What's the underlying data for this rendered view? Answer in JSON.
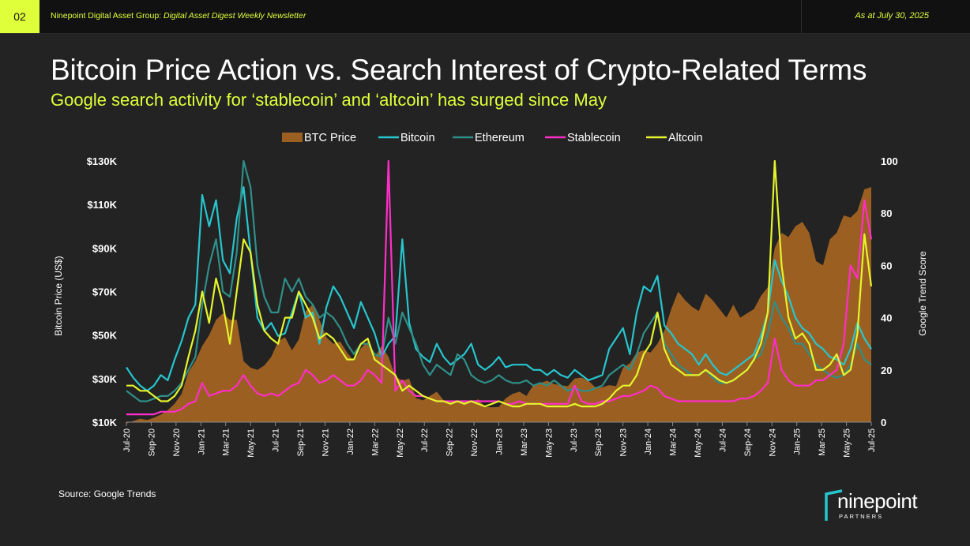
{
  "header": {
    "page_number": "02",
    "newsletter_prefix": "Ninepoint Digital Asset Group: ",
    "newsletter_name": "Digital Asset Digest Weekly Newsletter",
    "as_at": "As at July 30, 2025"
  },
  "title": "Bitcoin Price Action vs. Search Interest of Crypto-Related Terms",
  "subtitle": "Google search activity for ‘stablecoin’ and ‘altcoin’ has surged since May",
  "source": "Source: Google Trends",
  "logo": {
    "word": "ninepoint",
    "sub": "PARTNERS"
  },
  "colors": {
    "btc_price": "#9b5f22",
    "bitcoin": "#26c6cf",
    "ethereum": "#2f8f88",
    "stablecoin": "#ff2ec8",
    "altcoin": "#e5f52b",
    "accent": "#dfff3a",
    "background": "#232323"
  },
  "chart_data": {
    "type": "area",
    "legend_position": "top",
    "grid": false,
    "x_labels": [
      "Jul-20",
      "Sep-20",
      "Nov-20",
      "Jan-21",
      "Mar-21",
      "May-21",
      "Jul-21",
      "Sep-21",
      "Nov-21",
      "Jan-22",
      "Mar-22",
      "May-22",
      "Jul-22",
      "Sep-22",
      "Nov-22",
      "Jan-23",
      "Mar-23",
      "May-23",
      "Jul-23",
      "Sep-23",
      "Nov-23",
      "Jan-24",
      "Mar-24",
      "May-24",
      "Jul-24",
      "Sep-24",
      "Nov-24",
      "Jan-25",
      "Mar-25",
      "May-25",
      "Jul-25"
    ],
    "x_range": [
      "2020-07",
      "2025-07"
    ],
    "y_left": {
      "label": "Bitcoin Price (US$)",
      "ticks": [
        "$10K",
        "$30K",
        "$50K",
        "$70K",
        "$90K",
        "$110K",
        "$130K"
      ],
      "range": [
        10000,
        130000
      ]
    },
    "y_right": {
      "label": "Google Trend Score",
      "ticks": [
        "0",
        "20",
        "40",
        "60",
        "80",
        "100"
      ],
      "range": [
        0,
        100
      ]
    },
    "series": [
      {
        "name": "BTC Price",
        "type": "area",
        "axis": "left",
        "values": [
          9300,
          10500,
          11600,
          11000,
          12000,
          13500,
          15500,
          18500,
          23000,
          33000,
          38000,
          45000,
          50000,
          57000,
          60000,
          57000,
          57000,
          38000,
          35000,
          34000,
          36000,
          40000,
          47000,
          49000,
          43000,
          48000,
          61000,
          64000,
          57000,
          49000,
          46000,
          47000,
          42000,
          38000,
          44000,
          47000,
          40000,
          45000,
          40000,
          31000,
          29000,
          30000,
          21000,
          20000,
          22000,
          24000,
          20000,
          19500,
          19500,
          20000,
          19000,
          20500,
          17000,
          16800,
          17000,
          21000,
          23000,
          24000,
          22000,
          27000,
          28000,
          29000,
          27500,
          27000,
          26500,
          30000,
          30500,
          29000,
          26000,
          26000,
          27000,
          26500,
          35000,
          37000,
          42000,
          43000,
          42000,
          46000,
          52000,
          62000,
          70000,
          66000,
          63000,
          61000,
          69000,
          66000,
          62000,
          58000,
          64000,
          58000,
          60000,
          62000,
          68000,
          72000,
          90000,
          97000,
          95000,
          100000,
          102000,
          97000,
          84000,
          82000,
          94000,
          97000,
          105000,
          104000,
          107000,
          117000,
          118000
        ]
      },
      {
        "name": "Bitcoin",
        "type": "line",
        "axis": "right",
        "values": [
          21,
          17,
          14,
          12,
          14,
          18,
          16,
          24,
          31,
          40,
          45,
          87,
          75,
          85,
          62,
          57,
          78,
          90,
          65,
          40,
          35,
          38,
          33,
          34,
          42,
          50,
          40,
          42,
          30,
          44,
          52,
          48,
          42,
          36,
          46,
          40,
          34,
          25,
          30,
          33,
          70,
          38,
          28,
          25,
          23,
          30,
          25,
          22,
          24,
          26,
          30,
          22,
          20,
          22,
          25,
          21,
          22,
          22,
          22,
          20,
          20,
          18,
          20,
          18,
          17,
          20,
          18,
          16,
          17,
          18,
          28,
          32,
          36,
          26,
          42,
          52,
          50,
          56,
          37,
          34,
          30,
          28,
          26,
          22,
          26,
          22,
          19,
          18,
          20,
          22,
          24,
          26,
          33,
          42,
          62,
          54,
          48,
          40,
          36,
          34,
          30,
          28,
          25,
          24,
          22,
          28,
          38,
          32,
          28
        ]
      },
      {
        "name": "Ethereum",
        "type": "line",
        "axis": "right",
        "values": [
          12,
          10,
          8,
          8,
          9,
          10,
          10,
          12,
          15,
          20,
          25,
          45,
          60,
          70,
          50,
          48,
          65,
          100,
          90,
          60,
          48,
          42,
          42,
          55,
          50,
          55,
          48,
          45,
          40,
          42,
          40,
          36,
          30,
          26,
          30,
          30,
          26,
          25,
          40,
          30,
          42,
          36,
          30,
          22,
          18,
          22,
          20,
          18,
          26,
          24,
          18,
          16,
          15,
          16,
          18,
          16,
          15,
          15,
          16,
          14,
          15,
          14,
          16,
          14,
          12,
          13,
          12,
          12,
          13,
          14,
          18,
          20,
          22,
          20,
          26,
          34,
          38,
          42,
          30,
          26,
          22,
          20,
          18,
          18,
          20,
          17,
          15,
          15,
          16,
          18,
          20,
          24,
          26,
          34,
          46,
          40,
          36,
          30,
          30,
          26,
          22,
          20,
          18,
          17,
          18,
          22,
          30,
          24,
          22
        ]
      },
      {
        "name": "Stablecoin",
        "type": "line",
        "axis": "right",
        "values": [
          3,
          3,
          3,
          3,
          3,
          4,
          4,
          4,
          5,
          7,
          8,
          15,
          10,
          11,
          12,
          12,
          14,
          18,
          14,
          11,
          10,
          11,
          10,
          12,
          14,
          15,
          20,
          18,
          15,
          16,
          18,
          16,
          14,
          14,
          16,
          20,
          18,
          15,
          100,
          12,
          16,
          12,
          10,
          10,
          9,
          8,
          8,
          8,
          8,
          8,
          8,
          8,
          8,
          8,
          8,
          7,
          7,
          8,
          7,
          7,
          7,
          7,
          7,
          7,
          7,
          14,
          8,
          7,
          7,
          8,
          8,
          9,
          10,
          10,
          11,
          12,
          14,
          13,
          10,
          9,
          8,
          8,
          8,
          8,
          8,
          8,
          8,
          8,
          8,
          9,
          9,
          10,
          12,
          15,
          32,
          20,
          16,
          14,
          14,
          14,
          16,
          16,
          18,
          20,
          30,
          60,
          55,
          85,
          70
        ]
      },
      {
        "name": "Altcoin",
        "type": "line",
        "axis": "right",
        "values": [
          14,
          14,
          12,
          12,
          10,
          8,
          8,
          10,
          14,
          25,
          35,
          50,
          38,
          55,
          45,
          30,
          50,
          70,
          65,
          45,
          35,
          32,
          30,
          40,
          40,
          50,
          45,
          40,
          32,
          34,
          32,
          28,
          24,
          24,
          30,
          32,
          24,
          22,
          20,
          18,
          12,
          14,
          12,
          10,
          9,
          8,
          8,
          7,
          8,
          7,
          8,
          7,
          6,
          7,
          8,
          7,
          6,
          6,
          7,
          7,
          7,
          6,
          6,
          6,
          6,
          7,
          6,
          6,
          6,
          7,
          9,
          12,
          14,
          14,
          18,
          26,
          30,
          42,
          28,
          22,
          20,
          18,
          18,
          18,
          20,
          18,
          16,
          15,
          16,
          18,
          20,
          24,
          30,
          42,
          100,
          60,
          40,
          32,
          34,
          30,
          20,
          20,
          22,
          26,
          18,
          20,
          34,
          72,
          52
        ]
      }
    ]
  }
}
